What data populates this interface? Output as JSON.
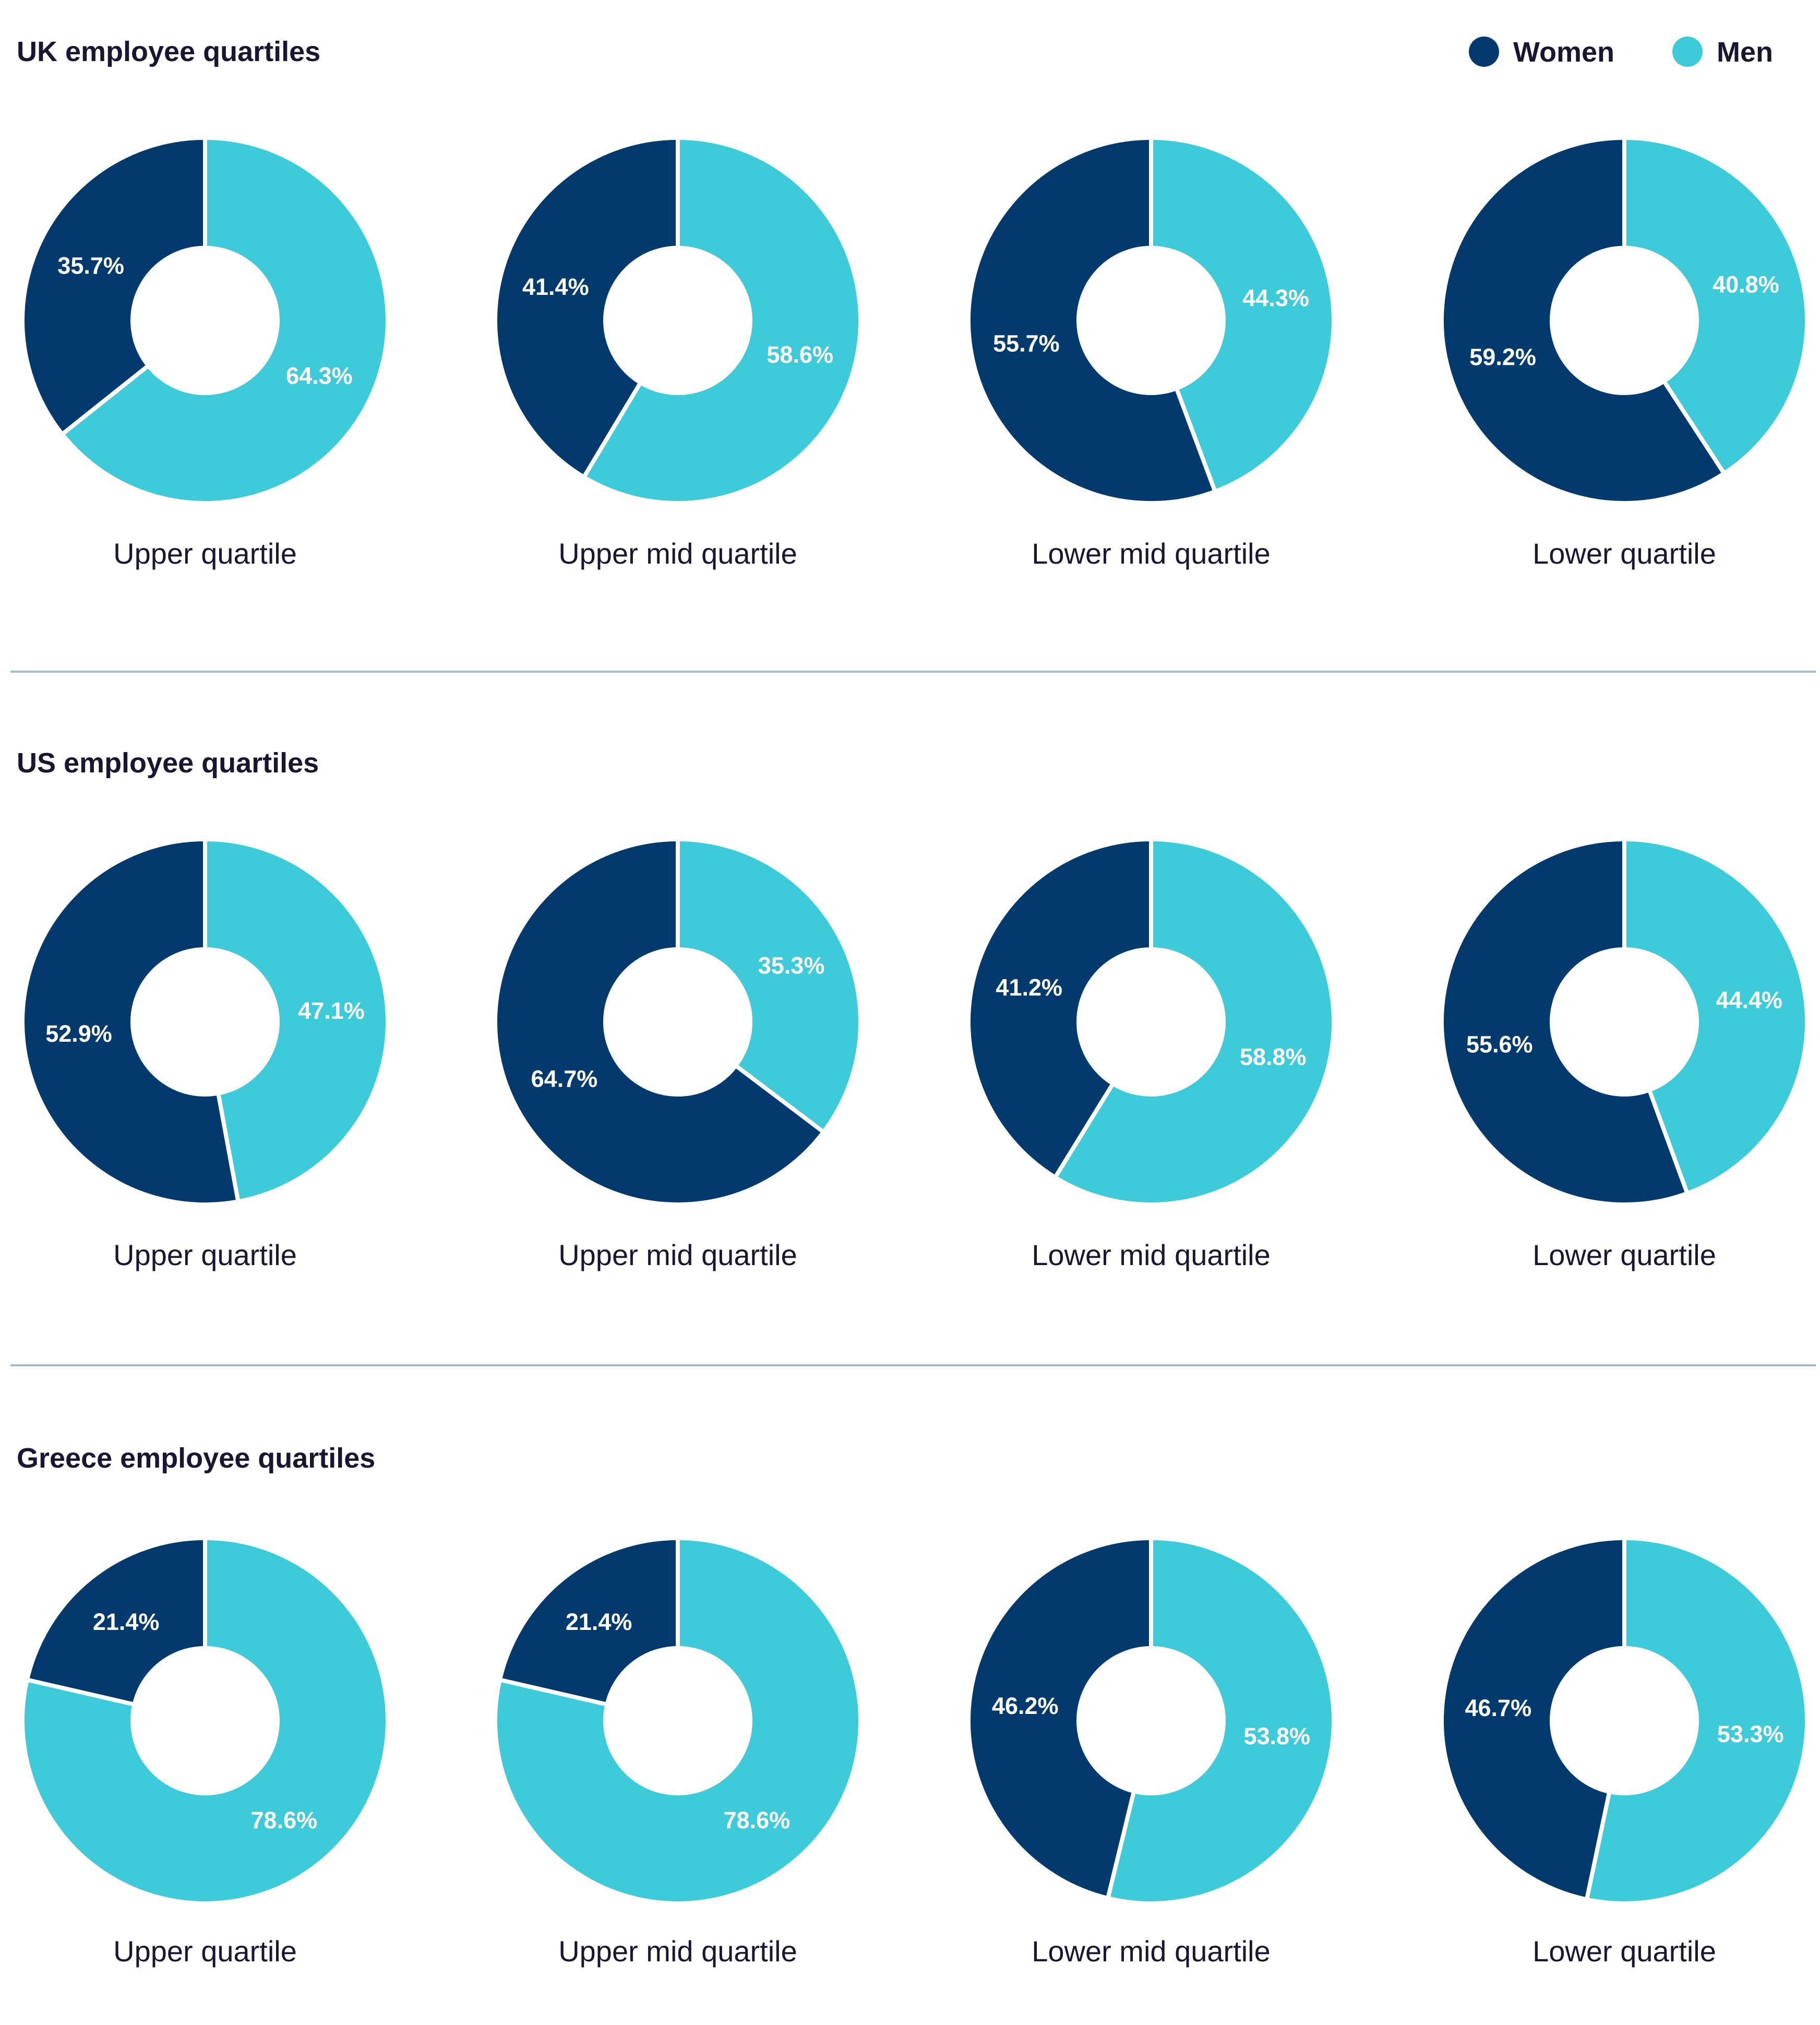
{
  "colors": {
    "women": "#023a6e",
    "men": "#3ecbd9",
    "text": "#1a1530",
    "divider": "#a8b8d0"
  },
  "legend": {
    "women_label": "Women",
    "men_label": "Men",
    "placement": "top-right"
  },
  "chart_data": [
    {
      "type": "pie",
      "title": "UK employee quartiles",
      "categories": [
        "Upper quartile",
        "Upper mid quartile",
        "Lower mid quartile",
        "Lower quartile"
      ],
      "series": [
        {
          "name": "Women",
          "values": [
            35.7,
            41.4,
            55.7,
            59.2
          ]
        },
        {
          "name": "Men",
          "values": [
            64.3,
            58.6,
            44.3,
            40.8
          ]
        }
      ]
    },
    {
      "type": "pie",
      "title": "US employee quartiles",
      "categories": [
        "Upper quartile",
        "Upper mid quartile",
        "Lower mid quartile",
        "Lower quartile"
      ],
      "series": [
        {
          "name": "Women",
          "values": [
            52.9,
            64.7,
            41.2,
            55.6
          ]
        },
        {
          "name": "Men",
          "values": [
            47.1,
            35.3,
            58.8,
            44.4
          ]
        }
      ]
    },
    {
      "type": "pie",
      "title": "Greece employee quartiles",
      "categories": [
        "Upper quartile",
        "Upper mid quartile",
        "Lower mid quartile",
        "Lower quartile"
      ],
      "series": [
        {
          "name": "Women",
          "values": [
            21.4,
            21.4,
            46.2,
            46.7
          ]
        },
        {
          "name": "Men",
          "values": [
            78.6,
            78.6,
            53.8,
            53.3
          ]
        }
      ]
    }
  ]
}
